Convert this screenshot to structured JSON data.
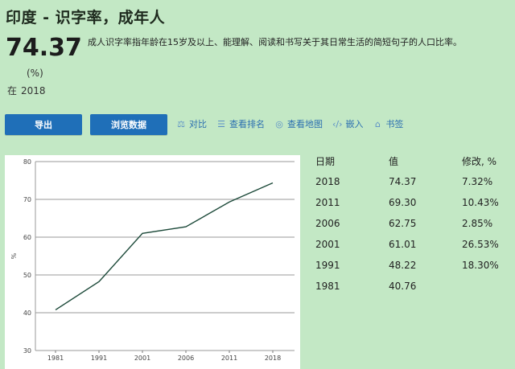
{
  "header": {
    "title": "印度 - 识字率，成年人",
    "value": "74.37",
    "unit": "(%)",
    "year_prefix": "在",
    "year": "2018",
    "description": "成人识字率指年龄在15岁及以上、能理解、阅读和书写关于其日常生活的简短句子的人口比率。"
  },
  "toolbar": {
    "export_label": "导出",
    "browse_label": "浏览数据",
    "actions": [
      {
        "icon": "compare-icon",
        "glyph": "⚖",
        "label": "对比"
      },
      {
        "icon": "ranking-icon",
        "glyph": "☰",
        "label": "查看排名"
      },
      {
        "icon": "globe-icon",
        "glyph": "◎",
        "label": "查看地图"
      },
      {
        "icon": "embed-icon",
        "glyph": "‹/›",
        "label": "嵌入"
      },
      {
        "icon": "bookmark-icon",
        "glyph": "⌂",
        "label": "书签"
      }
    ]
  },
  "table": {
    "headers": [
      "日期",
      "值",
      "修改, %"
    ],
    "rows": [
      [
        "2018",
        "74.37",
        "7.32%"
      ],
      [
        "2011",
        "69.30",
        "10.43%"
      ],
      [
        "2006",
        "62.75",
        "2.85%"
      ],
      [
        "2001",
        "61.01",
        "26.53%"
      ],
      [
        "1991",
        "48.22",
        "18.30%"
      ],
      [
        "1981",
        "40.76",
        ""
      ]
    ]
  },
  "chart_data": {
    "type": "line",
    "categories": [
      "1981",
      "1991",
      "2001",
      "2006",
      "2011",
      "2018"
    ],
    "values": [
      40.76,
      48.22,
      61.01,
      62.75,
      69.3,
      74.37
    ],
    "ylabel": "%",
    "ylim": [
      30,
      80
    ],
    "yticks": [
      "30",
      "40",
      "50",
      "60",
      "70",
      "80"
    ],
    "grid": true,
    "line_color": "#1d4a3a"
  }
}
